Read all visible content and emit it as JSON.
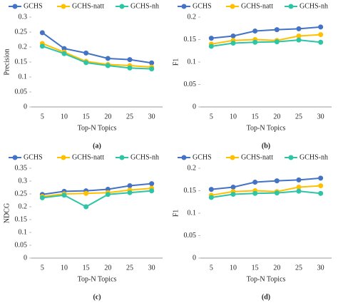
{
  "chart_data": [
    {
      "type": "line",
      "caption": "(a)",
      "x_label": "Top-N Topics",
      "y_label": "Precision",
      "categories": [
        5,
        10,
        15,
        20,
        25,
        30
      ],
      "ylim": [
        0,
        0.3
      ],
      "yticks": [
        0,
        0.05,
        0.1,
        0.15,
        0.2,
        0.25,
        0.3
      ],
      "series": [
        {
          "name": "GCHS",
          "color": "#4472c4",
          "values": [
            0.248,
            0.195,
            0.18,
            0.162,
            0.158,
            0.147
          ]
        },
        {
          "name": "GCHS-natt",
          "color": "#ffc000",
          "values": [
            0.212,
            0.183,
            0.152,
            0.142,
            0.138,
            0.133
          ]
        },
        {
          "name": "GCHS-nh",
          "color": "#2ec4a6",
          "values": [
            0.203,
            0.178,
            0.148,
            0.138,
            0.13,
            0.127
          ]
        }
      ]
    },
    {
      "type": "line",
      "caption": "(b)",
      "x_label": "Top-N Topics",
      "y_label": "F1",
      "categories": [
        5,
        10,
        15,
        20,
        25,
        30
      ],
      "ylim": [
        0,
        0.2
      ],
      "yticks": [
        0,
        0.05,
        0.1,
        0.15,
        0.2
      ],
      "series": [
        {
          "name": "GCHS",
          "color": "#4472c4",
          "values": [
            0.153,
            0.158,
            0.169,
            0.172,
            0.174,
            0.178
          ]
        },
        {
          "name": "GCHS-natt",
          "color": "#ffc000",
          "values": [
            0.14,
            0.148,
            0.15,
            0.148,
            0.158,
            0.161
          ]
        },
        {
          "name": "GCHS-nh",
          "color": "#2ec4a6",
          "values": [
            0.135,
            0.142,
            0.144,
            0.145,
            0.149,
            0.144
          ]
        }
      ]
    },
    {
      "type": "line",
      "caption": "(c)",
      "x_label": "Top-N Topics",
      "y_label": "NDCG",
      "categories": [
        5,
        10,
        15,
        20,
        25,
        30
      ],
      "ylim": [
        0,
        0.35
      ],
      "yticks": [
        0,
        0.05,
        0.1,
        0.15,
        0.2,
        0.25,
        0.3,
        0.35
      ],
      "series": [
        {
          "name": "GCHS",
          "color": "#4472c4",
          "values": [
            0.248,
            0.26,
            0.262,
            0.268,
            0.282,
            0.29
          ]
        },
        {
          "name": "GCHS-natt",
          "color": "#ffc000",
          "values": [
            0.24,
            0.25,
            0.252,
            0.255,
            0.265,
            0.272
          ]
        },
        {
          "name": "GCHS-nh",
          "color": "#2ec4a6",
          "values": [
            0.235,
            0.245,
            0.2,
            0.248,
            0.255,
            0.262
          ]
        }
      ]
    },
    {
      "type": "line",
      "caption": "(d)",
      "x_label": "Top-N Topics",
      "y_label": "F1",
      "categories": [
        5,
        10,
        15,
        20,
        25,
        30
      ],
      "ylim": [
        0,
        0.2
      ],
      "yticks": [
        0,
        0.05,
        0.1,
        0.15,
        0.2
      ],
      "series": [
        {
          "name": "GCHS",
          "color": "#4472c4",
          "values": [
            0.153,
            0.158,
            0.169,
            0.172,
            0.174,
            0.178
          ]
        },
        {
          "name": "GCHS-natt",
          "color": "#ffc000",
          "values": [
            0.14,
            0.148,
            0.15,
            0.148,
            0.158,
            0.161
          ]
        },
        {
          "name": "GCHS-nh",
          "color": "#2ec4a6",
          "values": [
            0.135,
            0.142,
            0.144,
            0.145,
            0.149,
            0.144
          ]
        }
      ]
    }
  ]
}
